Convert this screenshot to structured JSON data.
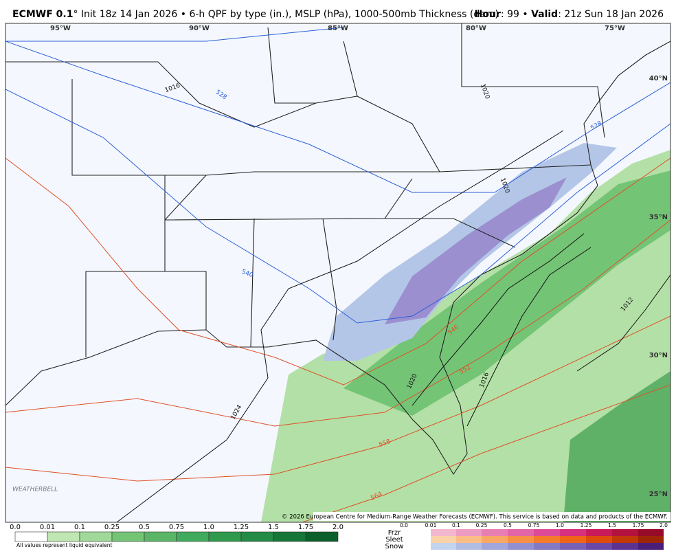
{
  "header": {
    "title": "ECMWF 0.1",
    "degree": "°",
    "init": "Init 18z 14 Jan 2026",
    "separator": "•",
    "product": "6-h QPF by type (in.), MSLP (hPa), 1000-500mb Thickness (dam)",
    "hour_label": "Hour",
    "hour": "99",
    "valid_label": "Valid",
    "valid": "21z Sun 18 Jan 2026"
  },
  "map": {
    "longitudes": [
      "95°W",
      "90°W",
      "85°W",
      "80°W",
      "75°W"
    ],
    "latitudes": [
      "40°N",
      "35°N",
      "30°N",
      "25°N"
    ],
    "isobar_labels": [
      "1016",
      "1020",
      "1020",
      "1024",
      "1020",
      "1016",
      "1012"
    ],
    "thickness_labels": [
      "528",
      "540",
      "546",
      "552",
      "558",
      "564",
      "528"
    ],
    "logo": "WEATHERBELL",
    "credit": "© 2026 European Centre for Medium-Range Weather Forecasts (ECMWF). This service is based on data and products of the ECMWF."
  },
  "legend": {
    "rain_ticks": [
      "0.0",
      "0.01",
      "0.1",
      "0.25",
      "0.5",
      "0.75",
      "1.0",
      "1.25",
      "1.5",
      "1.75",
      "2.0"
    ],
    "rain_note": "All values represent liquid equivalent",
    "types": [
      "Frzr",
      "Sleet",
      "Snow"
    ],
    "type_ticks": [
      "0.0",
      "0.01",
      "0.1",
      "0.25",
      "0.5",
      "0.75",
      "1.0",
      "1.25",
      "1.5",
      "1.75",
      "2.0"
    ]
  }
}
